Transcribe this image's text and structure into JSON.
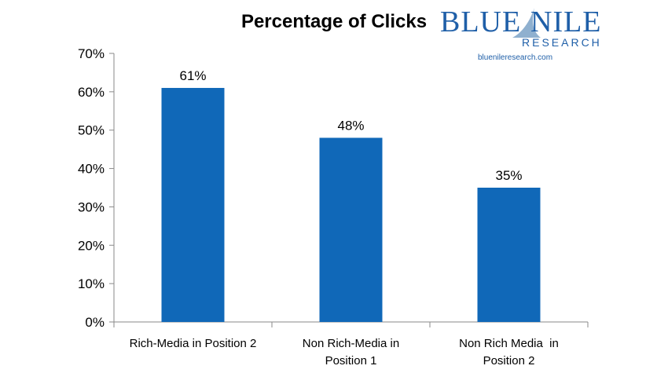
{
  "logo": {
    "word1": "BLUE",
    "word2": "NILE",
    "subtitle": "RESEARCH",
    "url": "bluenileresearch.com"
  },
  "chart_data": {
    "type": "bar",
    "title": "Percentage of Clicks",
    "categories": [
      [
        "Rich-Media in Position 2"
      ],
      [
        "Non Rich-Media in",
        "Position 1"
      ],
      [
        "Non Rich Media  in",
        "Position 2"
      ]
    ],
    "values": [
      61,
      48,
      35
    ],
    "value_labels": [
      "61%",
      "48%",
      "35%"
    ],
    "ylim": [
      0,
      70
    ],
    "yticks": [
      "0%",
      "10%",
      "20%",
      "30%",
      "40%",
      "50%",
      "60%",
      "70%"
    ],
    "bar_color": "#1068b8",
    "grid": false
  }
}
